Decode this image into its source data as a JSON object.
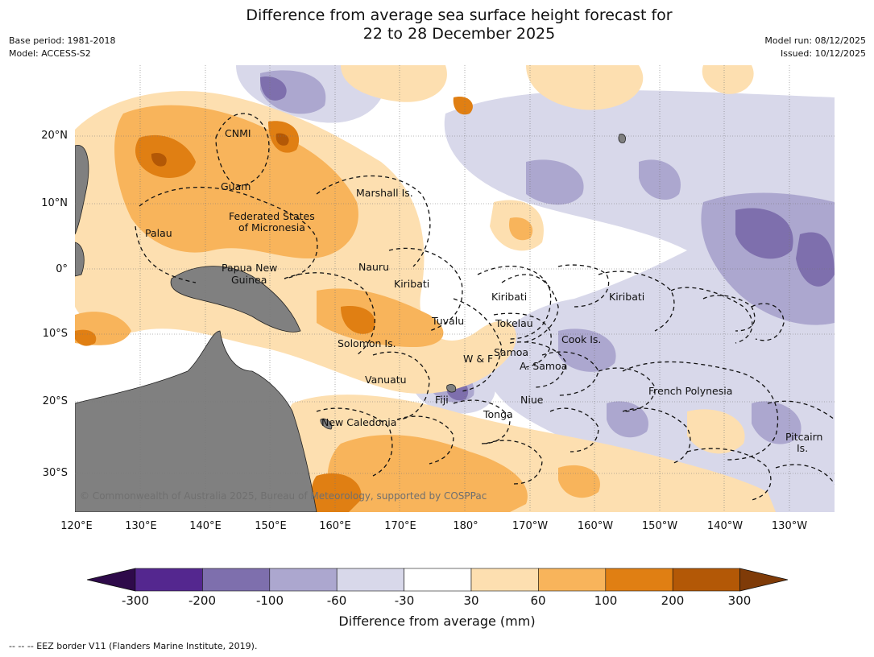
{
  "title": {
    "line1": "Difference from average sea surface height forecast for",
    "line2": "22 to 28 December 2025"
  },
  "meta_left": {
    "base_period": "Base period: 1981-2018",
    "model": "Model: ACCESS-S2"
  },
  "meta_right": {
    "model_run": "Model run: 08/12/2025",
    "issued": "Issued: 10/12/2025"
  },
  "map": {
    "latitude_labels": [
      "20°N",
      "10°N",
      "0°",
      "10°S",
      "20°S",
      "30°S"
    ],
    "longitude_labels": [
      "120°E",
      "130°E",
      "140°E",
      "150°E",
      "160°E",
      "170°E",
      "180°",
      "170°W",
      "160°W",
      "150°W",
      "140°W",
      "130°W"
    ],
    "places": {
      "cnmi": "CNMI",
      "guam": "Guam",
      "marshall": "Marshall Is.",
      "fsm_1": "Federated States",
      "fsm_2": "of Micronesia",
      "palau": "Palau",
      "png_1": "Papua New",
      "png_2": "Guinea",
      "nauru": "Nauru",
      "kiribati_w": "Kiribati",
      "kiribati_c": "Kiribati",
      "kiribati_e": "Kiribati",
      "tuvalu": "Tuvalu",
      "tokelau": "Tokelau",
      "cook": "Cook Is.",
      "solomon": "Solomon Is.",
      "samoa": "Samoa",
      "wf": "W & F",
      "asamoa": "A. Samoa",
      "vanuatu": "Vanuatu",
      "fiji": "Fiji",
      "niue": "Niue",
      "tonga": "Tonga",
      "newcal": "New Caledonia",
      "frpoly": "French Polynesia",
      "pitcairn_1": "Pitcairn",
      "pitcairn_2": "Is."
    },
    "copyright": "© Commonwealth of Australia 2025, Bureau of Meteorology, supported by COSPPac"
  },
  "colorbar": {
    "ticks": [
      "-300",
      "-200",
      "-100",
      "-60",
      "-30",
      "30",
      "60",
      "100",
      "200",
      "300"
    ],
    "colors": [
      "#2e0a4a",
      "#54278f",
      "#7e6fad",
      "#aca7cf",
      "#d8d8ea",
      "#ffffff",
      "#fddfb0",
      "#f8b45b",
      "#e07f13",
      "#b35806",
      "#7f3b08"
    ],
    "label": "Difference from average (mm)"
  },
  "footnote": "--  --  -- EEZ border V11 (Flanders Marine Institute, 2019)."
}
